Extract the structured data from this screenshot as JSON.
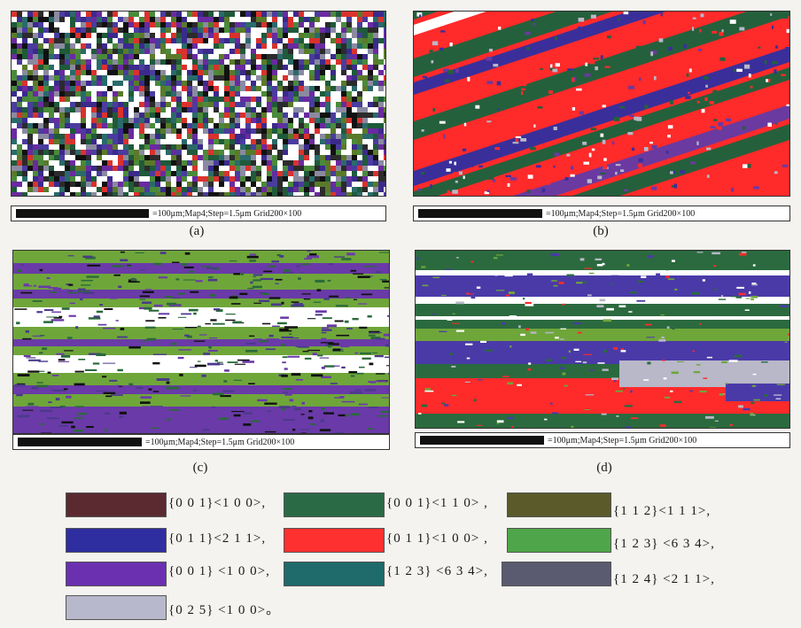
{
  "panels": [
    {
      "id": "a",
      "caption": "(a)",
      "scale_text": "=100μm;Map4;Step=1.5μm Grid200×100",
      "palette": [
        "#ffffff",
        "#ffffff",
        "#ffffff",
        "#3b2a8c",
        "#1f5a3a",
        "#4a3c9e",
        "#d9322e",
        "#2b2b2b",
        "#8a8aa0",
        "#6a2aa0",
        "#2a6a6a",
        "#5a7a2a",
        "#111111",
        "#4a8a3a"
      ]
    },
    {
      "id": "b",
      "caption": "(b)",
      "scale_text": "=100μm;Map4;Step=1.5μm Grid200×100",
      "palette": [
        "#ff2a2a",
        "#25603c",
        "#3a2f9a",
        "#ffffff",
        "#6a3aa0",
        "#b8b8c8"
      ]
    },
    {
      "id": "c",
      "caption": "(c)",
      "scale_text": "=100μm;Map4;Step=1.5μm Grid200×100",
      "palette": [
        "#6fa63a",
        "#6a3aa8",
        "#ffffff",
        "#2a6a3a",
        "#111111",
        "#4a3a8a"
      ]
    },
    {
      "id": "d",
      "caption": "(d)",
      "scale_text": "=100μm;Map4;Step=1.5μm Grid200×100",
      "palette": [
        "#2b6a3e",
        "#4a3aa8",
        "#ffffff",
        "#ff2a2a",
        "#b8b8c8",
        "#6fa63a"
      ]
    }
  ],
  "legend": [
    {
      "color": "#5a2a30",
      "label": "{0 0 1}<1 0 0>,"
    },
    {
      "color": "#2a6a45",
      "label": "{0 0 1}<1 1 0> ,"
    },
    {
      "color": "#5a5a2a",
      "label": "{1 1 2}<1 1 1>,"
    },
    {
      "color": "#2e2ea0",
      "label": "{0 1 1}<2 1 1>,"
    },
    {
      "color": "#ff3030",
      "label": "{0 1 1}<1 0 0> ,"
    },
    {
      "color": "#4fa64a",
      "label": "{1 2 3} <6 3 4>,"
    },
    {
      "color": "#6a30b0",
      "label": "{0 0 1} <1 0 0>,"
    },
    {
      "color": "#1f6a6a",
      "label": "{1 2 3} <6 3 4>,"
    },
    {
      "color": "#5a5a70",
      "label": "{1 2 4} <2 1 1>,"
    },
    {
      "color": "#b8b8cc",
      "label": "{0 2 5} <1 0 0>。"
    }
  ]
}
